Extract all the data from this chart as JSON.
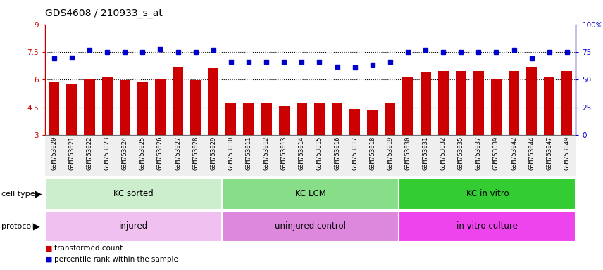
{
  "title": "GDS4608 / 210933_s_at",
  "samples": [
    "GSM753020",
    "GSM753021",
    "GSM753022",
    "GSM753023",
    "GSM753024",
    "GSM753025",
    "GSM753026",
    "GSM753027",
    "GSM753028",
    "GSM753029",
    "GSM753010",
    "GSM753011",
    "GSM753012",
    "GSM753013",
    "GSM753014",
    "GSM753015",
    "GSM753016",
    "GSM753017",
    "GSM753018",
    "GSM753019",
    "GSM753030",
    "GSM753031",
    "GSM753032",
    "GSM753035",
    "GSM753037",
    "GSM753039",
    "GSM753042",
    "GSM753044",
    "GSM753047",
    "GSM753049"
  ],
  "bar_values": [
    5.85,
    5.75,
    6.0,
    6.15,
    5.97,
    5.9,
    6.06,
    6.7,
    5.97,
    6.65,
    4.72,
    4.72,
    4.72,
    4.55,
    4.72,
    4.72,
    4.72,
    4.42,
    4.35,
    4.72,
    6.12,
    6.42,
    6.45,
    6.45,
    6.45,
    6.0,
    6.45,
    6.7,
    6.12,
    6.45
  ],
  "dot_values": [
    7.15,
    7.2,
    7.6,
    7.5,
    7.5,
    7.5,
    7.65,
    7.5,
    7.5,
    7.6,
    6.95,
    6.95,
    6.95,
    6.95,
    6.95,
    6.95,
    6.7,
    6.65,
    6.8,
    6.95,
    7.5,
    7.6,
    7.5,
    7.5,
    7.5,
    7.5,
    7.6,
    7.15,
    7.5,
    7.5
  ],
  "ylim": [
    3,
    9
  ],
  "y2lim": [
    0,
    100
  ],
  "yticks": [
    3,
    4.5,
    6,
    7.5,
    9
  ],
  "ytick_labels": [
    "3",
    "4.5",
    "6",
    "7.5",
    "9"
  ],
  "y2ticks": [
    0,
    25,
    50,
    75,
    100
  ],
  "y2tick_labels": [
    "0",
    "25",
    "50",
    "75",
    "100%"
  ],
  "hlines": [
    4.5,
    6.0,
    7.5
  ],
  "bar_color": "#cc0000",
  "dot_color": "#0000cc",
  "bar_bottom": 3,
  "cell_type_groups": [
    {
      "label": "KC sorted",
      "start": 0,
      "end": 9,
      "color": "#cceecc"
    },
    {
      "label": "KC LCM",
      "start": 10,
      "end": 19,
      "color": "#88dd88"
    },
    {
      "label": "KC in vitro",
      "start": 20,
      "end": 29,
      "color": "#33cc33"
    }
  ],
  "protocol_groups": [
    {
      "label": "injured",
      "start": 0,
      "end": 9,
      "color": "#f0c0f0"
    },
    {
      "label": "uninjured control",
      "start": 10,
      "end": 19,
      "color": "#dd88dd"
    },
    {
      "label": "in vitro culture",
      "start": 20,
      "end": 29,
      "color": "#ee44ee"
    }
  ],
  "legend_bar_label": "transformed count",
  "legend_dot_label": "percentile rank within the sample",
  "title_fontsize": 10,
  "tick_fontsize": 7.5,
  "label_fontsize": 8.5
}
